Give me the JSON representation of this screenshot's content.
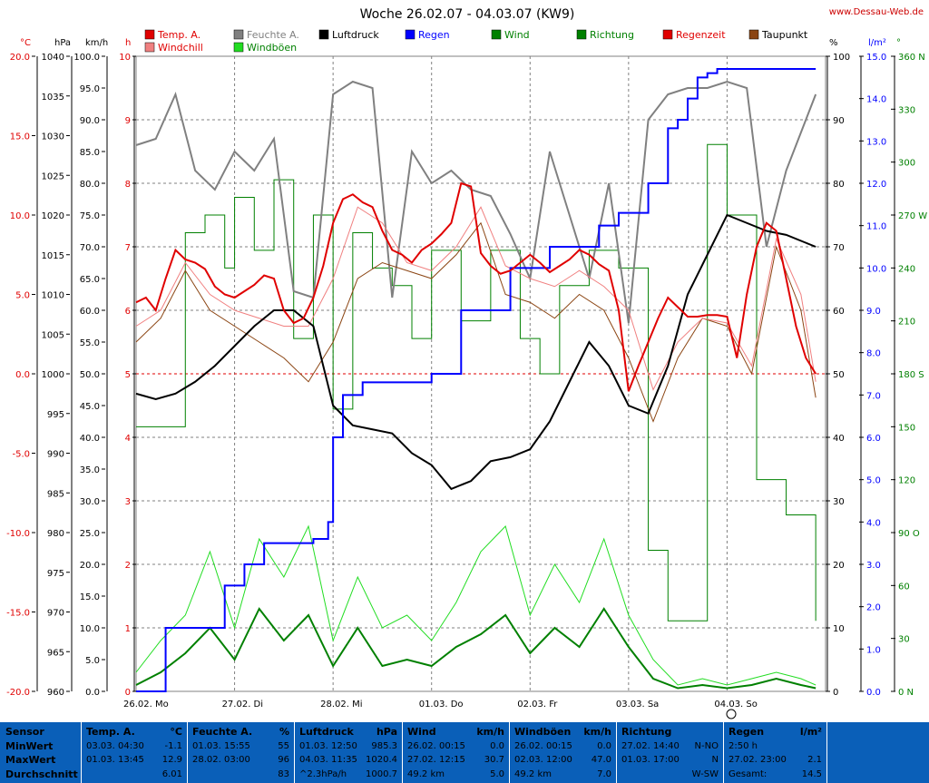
{
  "title": "Woche 26.02.07 - 04.03.07 (KW9)",
  "site": "www.Dessau-Web.de",
  "legend": [
    {
      "label": "Temp. A.",
      "color": "#e00000"
    },
    {
      "label": "Windchill",
      "color": "#f08080"
    },
    {
      "label": "Feuchte A.",
      "color": "#808080"
    },
    {
      "label": "Windböen",
      "color": "#22dd22"
    },
    {
      "label": "Luftdruck",
      "color": "#000000"
    },
    {
      "label": "Regen",
      "color": "#0000ff"
    },
    {
      "label": "Wind",
      "color": "#008000"
    },
    {
      "label": "Richtung",
      "color": "#008000"
    },
    {
      "label": "Regenzeit",
      "color": "#e00000"
    },
    {
      "label": "Taupunkt",
      "color": "#8b4513"
    }
  ],
  "axes": {
    "temp": {
      "unit": "°C",
      "ticks": [
        "20.0",
        "15.0",
        "10.0",
        "5.0",
        "0.0",
        "-5.0",
        "-10.0",
        "-15.0",
        "-20.0"
      ],
      "color": "#e00000"
    },
    "pressure": {
      "unit": "hPa",
      "ticks": [
        "1040",
        "1035",
        "1030",
        "1025",
        "1020",
        "1015",
        "1010",
        "1005",
        "1000",
        "995",
        "990",
        "985",
        "980",
        "975",
        "970",
        "965",
        "960"
      ]
    },
    "wind": {
      "unit": "km/h",
      "ticks": [
        "100.0",
        "95.0",
        "90.0",
        "85.0",
        "80.0",
        "75.0",
        "70.0",
        "65.0",
        "60.0",
        "55.0",
        "50.0",
        "45.0",
        "40.0",
        "35.0",
        "30.0",
        "25.0",
        "20.0",
        "15.0",
        "10.0",
        "5.0",
        "0.0"
      ]
    },
    "hours": {
      "unit": "h",
      "ticks": [
        "10",
        "9",
        "8",
        "7",
        "6",
        "5",
        "4",
        "3",
        "2",
        "1",
        "0"
      ],
      "color": "#e00000"
    },
    "humidity": {
      "unit": "%",
      "ticks": [
        "100",
        "90",
        "80",
        "70",
        "60",
        "50",
        "40",
        "30",
        "20",
        "10",
        "0"
      ]
    },
    "rain": {
      "unit": "l/m²",
      "ticks": [
        "15.0",
        "14.0",
        "13.0",
        "12.0",
        "11.0",
        "10.0",
        "9.0",
        "8.0",
        "7.0",
        "6.0",
        "5.0",
        "4.0",
        "3.0",
        "2.0",
        "1.0",
        "0.0"
      ],
      "color": "#0000ff"
    },
    "direction": {
      "unit": "°",
      "ticks": [
        "360 N",
        "330",
        "300",
        "270 W",
        "240",
        "210",
        "180 S",
        "150",
        "120",
        "90 O",
        "60",
        "30",
        "0 N"
      ],
      "color": "#008000"
    }
  },
  "days": [
    "26.02.  Mo",
    "27.02.  Di",
    "28.02.  Mi",
    "01.03.  Do",
    "02.03.  Fr",
    "03.03.  Sa",
    "04.03.  So"
  ],
  "chart_data": {
    "type": "line",
    "title": "Woche 26.02.07 - 04.03.07 (KW9)",
    "x_unit": "day index (0 = 26.02. 00:00)",
    "series": [
      {
        "name": "Temp. A.",
        "unit": "°C",
        "x": [
          0,
          0.1,
          0.2,
          0.3,
          0.4,
          0.5,
          0.6,
          0.7,
          0.8,
          0.9,
          1.0,
          1.1,
          1.2,
          1.3,
          1.4,
          1.5,
          1.6,
          1.7,
          1.8,
          1.9,
          2.0,
          2.1,
          2.2,
          2.3,
          2.4,
          2.5,
          2.6,
          2.7,
          2.8,
          2.9,
          3.0,
          3.1,
          3.2,
          3.3,
          3.4,
          3.5,
          3.6,
          3.7,
          3.8,
          3.9,
          4.0,
          4.1,
          4.2,
          4.3,
          4.4,
          4.5,
          4.6,
          4.7,
          4.8,
          4.9,
          5.0,
          5.1,
          5.2,
          5.3,
          5.4,
          5.5,
          5.6,
          5.7,
          5.8,
          5.9,
          6.0,
          6.1,
          6.2,
          6.3,
          6.4,
          6.5,
          6.6,
          6.7,
          6.8,
          6.9
        ],
        "y": [
          4.5,
          4.8,
          4.0,
          6.0,
          7.8,
          7.2,
          7.0,
          6.6,
          5.5,
          5.0,
          4.8,
          5.2,
          5.6,
          6.2,
          6.0,
          4.0,
          3.2,
          3.5,
          4.8,
          6.8,
          9.5,
          11.0,
          11.3,
          10.8,
          10.5,
          9.0,
          7.8,
          7.5,
          7.0,
          7.8,
          8.2,
          8.8,
          9.5,
          12.0,
          11.8,
          7.6,
          6.8,
          6.3,
          6.5,
          7.0,
          7.5,
          7.0,
          6.4,
          6.8,
          7.2,
          7.8,
          7.5,
          6.9,
          6.5,
          4.0,
          -1.1,
          0.5,
          2.0,
          3.5,
          4.8,
          4.2,
          3.6,
          3.6,
          3.7,
          3.7,
          3.6,
          1.0,
          5.0,
          8.0,
          9.5,
          9.0,
          6.0,
          3.0,
          1.0,
          0.0
        ]
      },
      {
        "name": "Windchill",
        "unit": "°C",
        "x": [
          0,
          0.25,
          0.5,
          0.75,
          1.0,
          1.25,
          1.5,
          1.75,
          2.0,
          2.25,
          2.5,
          2.75,
          3.0,
          3.25,
          3.5,
          3.75,
          4.0,
          4.25,
          4.5,
          4.75,
          5.0,
          5.25,
          5.5,
          5.75,
          6.0,
          6.25,
          6.5,
          6.75,
          6.9
        ],
        "y": [
          3.0,
          4.0,
          7.0,
          5.0,
          4.0,
          3.5,
          3.0,
          3.0,
          6.0,
          10.5,
          9.5,
          7.0,
          6.5,
          8.0,
          10.5,
          6.8,
          6.0,
          5.5,
          6.5,
          5.5,
          4.0,
          -1.0,
          2.0,
          3.5,
          3.2,
          0.5,
          8.5,
          5.0,
          -0.5
        ]
      },
      {
        "name": "Feuchte A.",
        "unit": "%",
        "x": [
          0,
          0.2,
          0.4,
          0.6,
          0.8,
          1.0,
          1.2,
          1.4,
          1.6,
          1.8,
          2.0,
          2.2,
          2.4,
          2.6,
          2.8,
          3.0,
          3.2,
          3.4,
          3.6,
          3.8,
          4.0,
          4.2,
          4.4,
          4.6,
          4.8,
          5.0,
          5.2,
          5.4,
          5.6,
          5.8,
          6.0,
          6.2,
          6.4,
          6.6,
          6.9
        ],
        "y": [
          86,
          87,
          94,
          82,
          79,
          85,
          82,
          87,
          63,
          62,
          94,
          96,
          95,
          62,
          85,
          80,
          82,
          79,
          78,
          72,
          65,
          85,
          75,
          65,
          80,
          58,
          90,
          94,
          95,
          95,
          96,
          95,
          70,
          82,
          94
        ]
      },
      {
        "name": "Luftdruck",
        "unit": "hPa",
        "x": [
          0,
          0.2,
          0.4,
          0.6,
          0.8,
          1.0,
          1.2,
          1.4,
          1.6,
          1.8,
          2.0,
          2.2,
          2.4,
          2.6,
          2.8,
          3.0,
          3.2,
          3.4,
          3.6,
          3.8,
          4.0,
          4.2,
          4.4,
          4.6,
          4.8,
          5.0,
          5.2,
          5.4,
          5.6,
          5.8,
          6.0,
          6.2,
          6.4,
          6.6,
          6.8,
          6.9
        ],
        "y": [
          997.5,
          996.8,
          997.5,
          999.0,
          1001.0,
          1003.5,
          1006.0,
          1008.0,
          1008.0,
          1006.0,
          996.0,
          993.5,
          993.0,
          992.5,
          990.0,
          988.5,
          985.5,
          986.5,
          989.0,
          989.5,
          990.5,
          994.0,
          999.0,
          1004.0,
          1001.0,
          996.0,
          995.0,
          1001.0,
          1010.0,
          1015.0,
          1020.0,
          1019.0,
          1018.0,
          1017.5,
          1016.5,
          1016.0
        ]
      },
      {
        "name": "Regen",
        "unit": "l/m²",
        "x": [
          0,
          0.3,
          0.5,
          0.9,
          1.1,
          1.3,
          1.5,
          1.8,
          1.95,
          2.0,
          2.1,
          2.3,
          2.8,
          3.0,
          3.3,
          3.8,
          4.2,
          4.5,
          4.7,
          4.9,
          5.0,
          5.2,
          5.4,
          5.5,
          5.6,
          5.7,
          5.8,
          5.9,
          6.0,
          6.3,
          6.9
        ],
        "y": [
          0,
          1.5,
          1.5,
          2.5,
          3.0,
          3.5,
          3.5,
          3.6,
          4.0,
          6.0,
          7.0,
          7.3,
          7.3,
          7.5,
          9.0,
          10.0,
          10.5,
          10.5,
          11.0,
          11.3,
          11.3,
          12.0,
          13.3,
          13.5,
          14.0,
          14.5,
          14.6,
          14.7,
          14.7,
          14.7,
          14.7
        ]
      },
      {
        "name": "Wind",
        "unit": "km/h",
        "x": [
          0,
          0.25,
          0.5,
          0.75,
          1.0,
          1.25,
          1.5,
          1.75,
          2.0,
          2.25,
          2.5,
          2.75,
          3.0,
          3.25,
          3.5,
          3.75,
          4.0,
          4.25,
          4.5,
          4.75,
          5.0,
          5.25,
          5.5,
          5.75,
          6.0,
          6.25,
          6.5,
          6.75,
          6.9
        ],
        "y": [
          1.0,
          3.0,
          6.0,
          10.0,
          5.0,
          13.0,
          8.0,
          12.0,
          4.0,
          10.0,
          4.0,
          5.0,
          4.0,
          7.0,
          9.0,
          12.0,
          6.0,
          10.0,
          7.0,
          13.0,
          7.0,
          2.0,
          0.5,
          1.0,
          0.5,
          1.0,
          2.0,
          1.0,
          0.5
        ]
      },
      {
        "name": "Windböen",
        "unit": "km/h",
        "x": [
          0,
          0.25,
          0.5,
          0.75,
          1.0,
          1.25,
          1.5,
          1.75,
          2.0,
          2.25,
          2.5,
          2.75,
          3.0,
          3.25,
          3.5,
          3.75,
          4.0,
          4.25,
          4.5,
          4.75,
          5.0,
          5.25,
          5.5,
          5.75,
          6.0,
          6.25,
          6.5,
          6.75,
          6.9
        ],
        "y": [
          3.0,
          8.0,
          12.0,
          22.0,
          10.0,
          24.0,
          18.0,
          26.0,
          8.0,
          18.0,
          10.0,
          12.0,
          8.0,
          14.0,
          22.0,
          26.0,
          12.0,
          20.0,
          14.0,
          24.0,
          12.0,
          5.0,
          1.0,
          2.0,
          1.0,
          2.0,
          3.0,
          2.0,
          1.0
        ]
      },
      {
        "name": "Richtung",
        "unit": "°",
        "x": [
          0,
          0.4,
          0.5,
          0.7,
          0.9,
          1.0,
          1.2,
          1.4,
          1.6,
          1.8,
          2.0,
          2.2,
          2.4,
          2.6,
          2.8,
          3.0,
          3.3,
          3.6,
          3.9,
          4.1,
          4.3,
          4.6,
          4.9,
          5.2,
          5.4,
          5.6,
          5.8,
          6.0,
          6.3,
          6.6,
          6.9
        ],
        "y": [
          150,
          150,
          260,
          270,
          240,
          280,
          250,
          290,
          200,
          270,
          160,
          260,
          240,
          230,
          200,
          250,
          210,
          250,
          200,
          180,
          230,
          250,
          240,
          80,
          40,
          40,
          310,
          270,
          120,
          100,
          40
        ]
      },
      {
        "name": "Taupunkt",
        "unit": "°C",
        "x": [
          0,
          0.25,
          0.5,
          0.75,
          1.0,
          1.25,
          1.5,
          1.75,
          2.0,
          2.25,
          2.5,
          2.75,
          3.0,
          3.25,
          3.5,
          3.75,
          4.0,
          4.25,
          4.5,
          4.75,
          5.0,
          5.25,
          5.5,
          5.75,
          6.0,
          6.25,
          6.5,
          6.75,
          6.9
        ],
        "y": [
          2.0,
          3.5,
          6.5,
          4.0,
          3.0,
          2.0,
          1.0,
          -0.5,
          2.0,
          6.0,
          7.0,
          6.5,
          6.0,
          7.5,
          9.5,
          5.0,
          4.5,
          3.5,
          5.0,
          4.0,
          1.0,
          -3.0,
          1.0,
          3.5,
          3.0,
          0.0,
          8.0,
          4.0,
          -1.5
        ]
      }
    ],
    "axes": {
      "temp_ylim": [
        -20,
        20
      ],
      "pressure_ylim": [
        960,
        1040
      ],
      "wind_ylim": [
        0,
        100
      ],
      "humidity_ylim": [
        0,
        100
      ],
      "rain_ylim": [
        0,
        15
      ],
      "direction_ylim": [
        0,
        360
      ],
      "hours_ylim": [
        0,
        10
      ]
    },
    "grid": true
  },
  "table": {
    "rows": [
      "Sensor",
      "MinWert",
      "MaxWert",
      "Durchschnitt"
    ],
    "columns": [
      {
        "head": "Temp. A.",
        "unit": "°C",
        "cells": [
          [
            "03.03.  04:30",
            "-1.1"
          ],
          [
            "01.03.  13:45",
            "12.9"
          ],
          [
            "",
            "6.01"
          ]
        ]
      },
      {
        "head": "Feuchte A.",
        "unit": "%",
        "cells": [
          [
            "01.03.  15:55",
            "55"
          ],
          [
            "28.02.  03:00",
            "96"
          ],
          [
            "",
            "83"
          ]
        ]
      },
      {
        "head": "Luftdruck",
        "unit": "hPa",
        "cells": [
          [
            "01.03.  12:50",
            "985.3"
          ],
          [
            "04.03.  11:35",
            "1020.4"
          ],
          [
            "^2.3hPa/h",
            "1000.7"
          ]
        ]
      },
      {
        "head": "Wind",
        "unit": "km/h",
        "cells": [
          [
            "26.02.  00:15",
            "0.0"
          ],
          [
            "27.02.  12:15",
            "30.7"
          ],
          [
            "49.2 km",
            "5.0"
          ]
        ]
      },
      {
        "head": "Windböen",
        "unit": "km/h",
        "cells": [
          [
            "26.02.  00:15",
            "0.0"
          ],
          [
            "02.03.  12:00",
            "47.0"
          ],
          [
            "49.2 km",
            "7.0"
          ]
        ]
      },
      {
        "head": "Richtung",
        "unit": "",
        "cells": [
          [
            "27.02.  14:40",
            "N-NO"
          ],
          [
            "01.03.  17:00",
            "N"
          ],
          [
            "",
            "W-SW"
          ]
        ]
      },
      {
        "head": "Regen",
        "unit": "l/m²",
        "cells": [
          [
            "2:50 h",
            ""
          ],
          [
            "27.02.  23:00",
            "2.1"
          ],
          [
            "Gesamt:",
            "14.5"
          ]
        ]
      }
    ]
  }
}
